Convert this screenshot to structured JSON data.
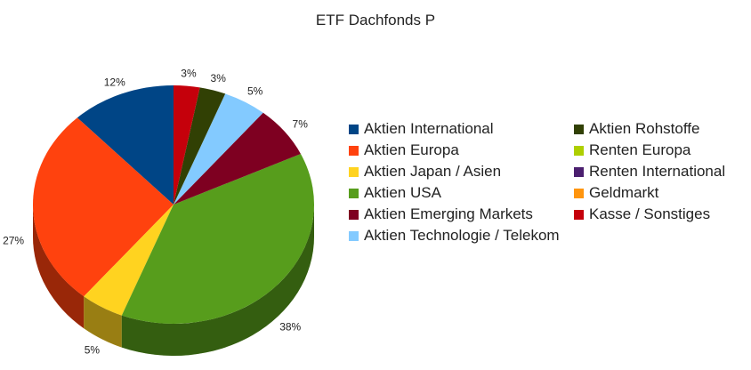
{
  "chart_data": {
    "type": "pie",
    "title": "ETF Dachfonds P",
    "categories": [
      "Aktien International",
      "Aktien Europa",
      "Aktien Japan / Asien",
      "Aktien USA",
      "Aktien Emerging Markets",
      "Aktien Technologie / Telekom",
      "Aktien Rohstoffe",
      "Renten Europa",
      "Renten International",
      "Geldmarkt",
      "Kasse / Sonstiges"
    ],
    "values": [
      12,
      27,
      5,
      38,
      7,
      5,
      3,
      0,
      0,
      0,
      3
    ],
    "value_labels": [
      "12%",
      "27%",
      "5%",
      "38%",
      "7%",
      "5%",
      "3%",
      null,
      null,
      null,
      "3%"
    ],
    "colors": [
      "#004586",
      "#ff420e",
      "#ffd320",
      "#579d1c",
      "#7e0021",
      "#83caff",
      "#314004",
      "#aecf00",
      "#4b1f6f",
      "#ff950e",
      "#c5000b"
    ],
    "legend": "right"
  }
}
